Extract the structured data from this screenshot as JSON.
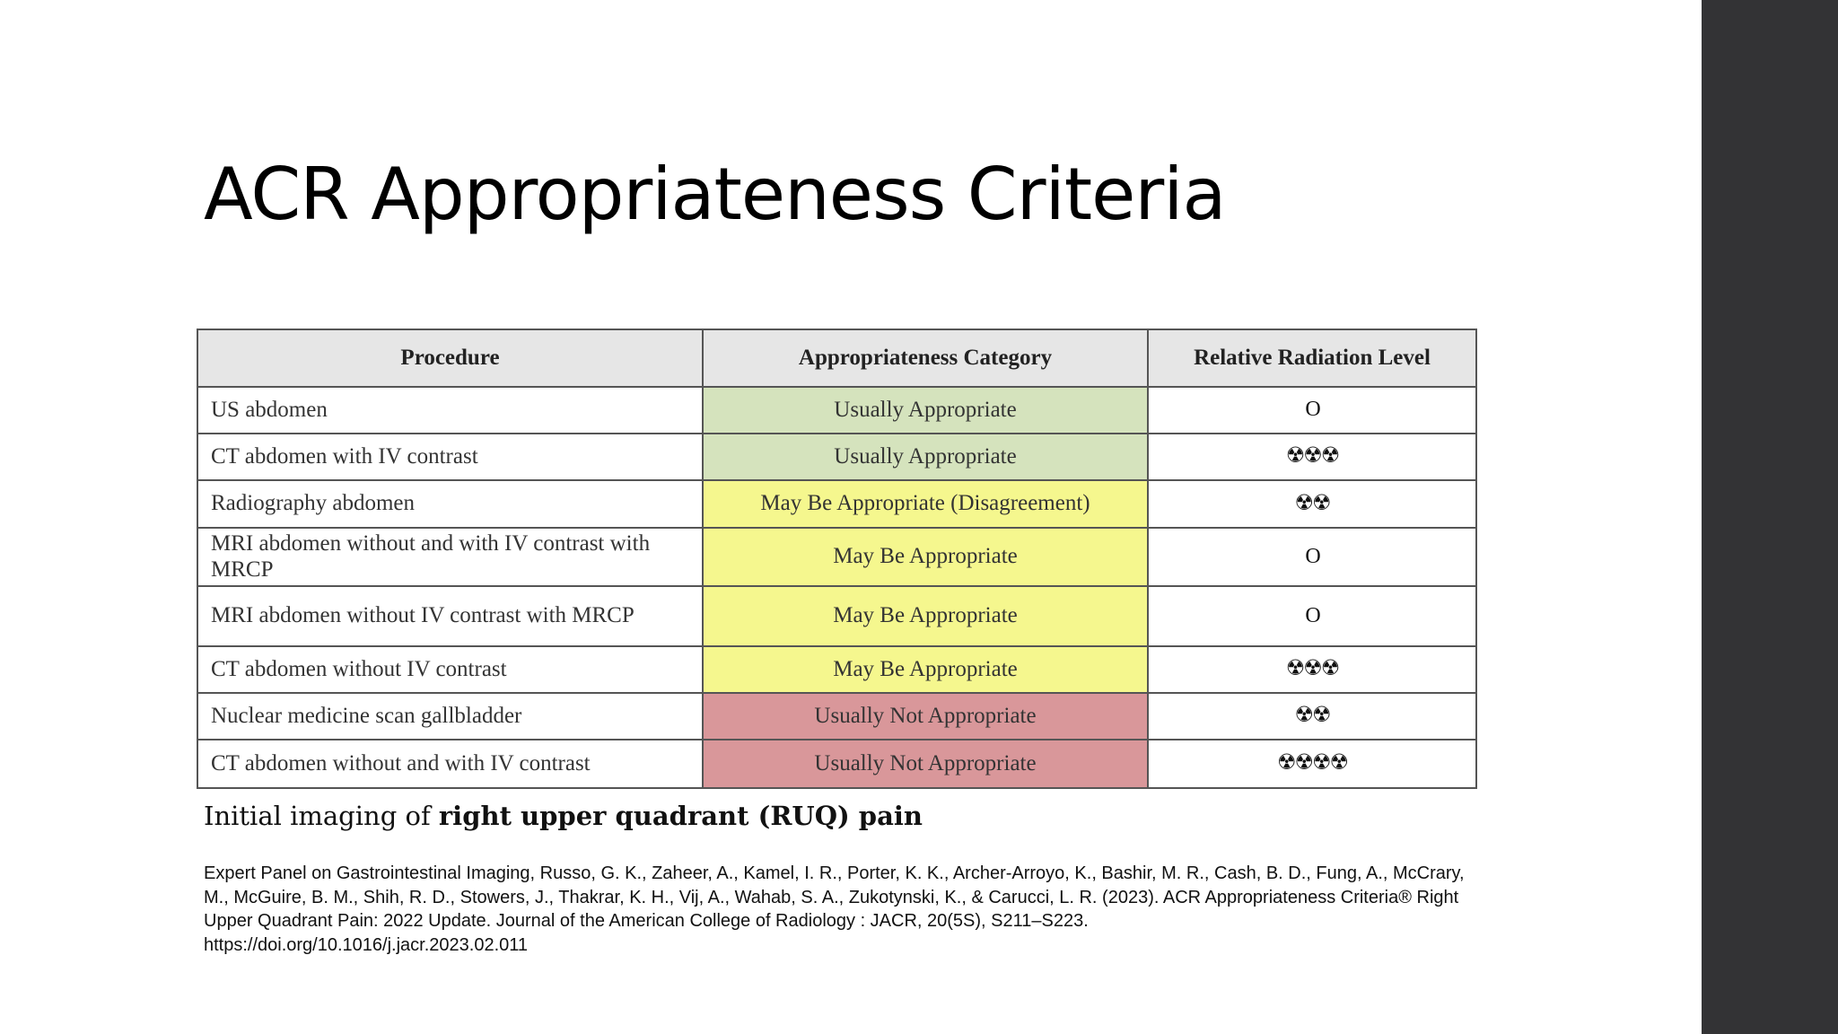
{
  "slide": {
    "title": "ACR Appropriateness Criteria",
    "caption_prefix": "Initial imaging of ",
    "caption_bold": "right upper quadrant (RUQ) pain",
    "citation": "Expert Panel on Gastrointestinal Imaging, Russo, G. K., Zaheer, A., Kamel, I. R., Porter, K. K., Archer-Arroyo, K., Bashir, M. R., Cash, B. D., Fung, A., McCrary, M., McGuire, B. M., Shih, R. D., Stowers, J., Thakrar, K. H., Vij, A., Wahab, S. A., Zukotynski, K., & Carucci, L. R. (2023). ACR Appropriateness Criteria® Right Upper Quadrant Pain: 2022 Update. Journal of the American College of Radiology : JACR, 20(5S), S211–S223.",
    "doi": "https://doi.org/10.1016/j.jacr.2023.02.011"
  },
  "colors": {
    "usually_appropriate": "#d5e3bd",
    "may_be_appropriate": "#f5f78e",
    "usually_not_appropriate": "#d9979a",
    "sidebar": "#333335"
  },
  "table": {
    "headers": [
      "Procedure",
      "Appropriateness Category",
      "Relative Radiation Level"
    ],
    "rows": [
      {
        "procedure": "US abdomen",
        "category": "Usually Appropriate",
        "level": "green",
        "radiation": "O"
      },
      {
        "procedure": "CT abdomen with IV contrast",
        "category": "Usually Appropriate",
        "level": "green",
        "radiation": "☢☢☢"
      },
      {
        "procedure": "Radiography abdomen",
        "category": "May Be Appropriate (Disagreement)",
        "level": "yellow",
        "radiation": "☢☢"
      },
      {
        "procedure": "MRI abdomen without and with IV contrast with MRCP",
        "category": "May Be Appropriate",
        "level": "yellow",
        "radiation": "O"
      },
      {
        "procedure": "MRI abdomen without IV contrast with MRCP",
        "category": "May Be Appropriate",
        "level": "yellow",
        "radiation": "O"
      },
      {
        "procedure": "CT abdomen without IV contrast",
        "category": "May Be Appropriate",
        "level": "yellow",
        "radiation": "☢☢☢"
      },
      {
        "procedure": "Nuclear medicine scan gallbladder",
        "category": "Usually Not Appropriate",
        "level": "red",
        "radiation": "☢☢"
      },
      {
        "procedure": "CT abdomen without and with IV contrast",
        "category": "Usually Not Appropriate",
        "level": "red",
        "radiation": "☢☢☢☢"
      }
    ]
  }
}
